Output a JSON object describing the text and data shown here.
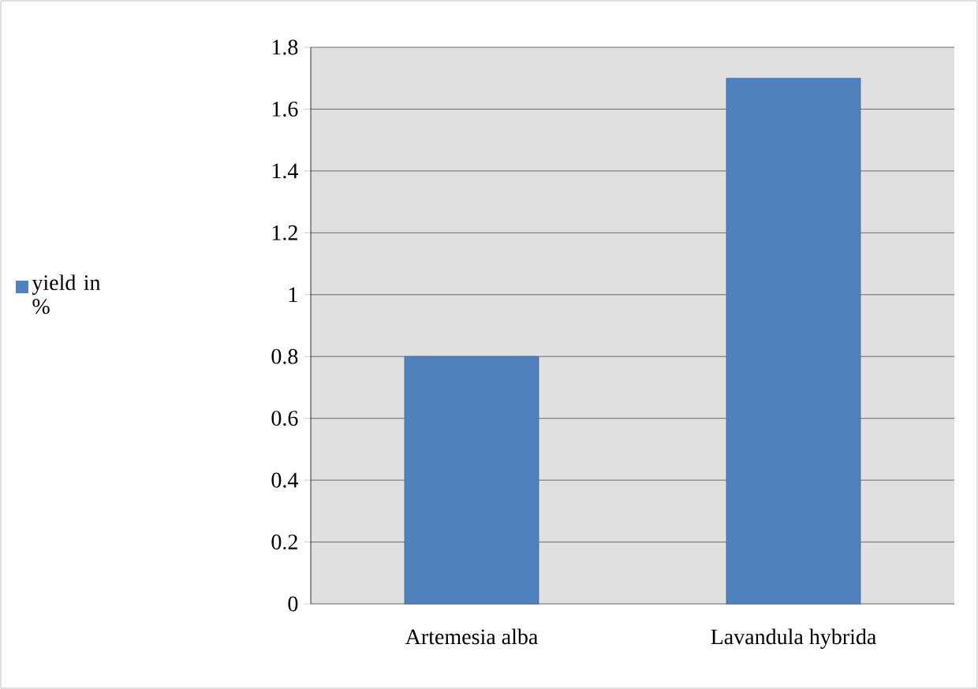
{
  "chart_data": {
    "type": "bar",
    "categories": [
      "Artemesia alba",
      "Lavandula hybrida"
    ],
    "series": [
      {
        "name": "yield in %",
        "color": "#4f81bd",
        "values": [
          0.8,
          1.7
        ]
      }
    ],
    "ylim": [
      0,
      1.8
    ],
    "yticks": [
      0,
      0.2,
      0.4,
      0.6,
      0.8,
      1,
      1.2,
      1.4,
      1.6,
      1.8
    ],
    "grid": "y",
    "legend": "left"
  }
}
